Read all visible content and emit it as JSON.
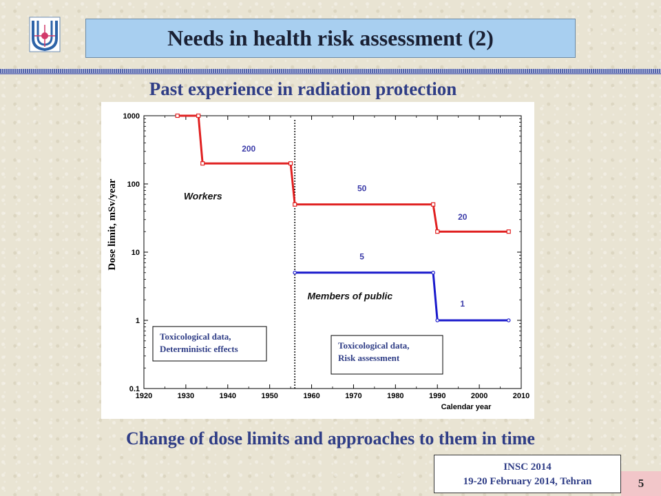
{
  "slide": {
    "title": "Needs in health risk assessment (2)",
    "subtitle": "Past experience in radiation protection",
    "caption": "Change of dose limits and approaches  to them  in time",
    "footer_line1": "INSC 2014",
    "footer_line2": "19-20 February 2014, Tehran",
    "page_number": "5"
  },
  "chart_data": {
    "type": "line",
    "xlabel": "Calendar year",
    "ylabel": "Dose limit, mSv/year",
    "xlim": [
      1920,
      2010
    ],
    "ylim": [
      0.1,
      1000
    ],
    "yscale": "log",
    "x_ticks": [
      "1920",
      "1930",
      "1940",
      "1950",
      "1960",
      "1970",
      "1980",
      "1990",
      "2000",
      "2010"
    ],
    "y_ticks": [
      "0.1",
      "1",
      "10",
      "100",
      "1000"
    ],
    "vertical_line_x": 1956,
    "series": [
      {
        "name": "Workers",
        "color": "#e02020",
        "points": [
          [
            1928,
            1000
          ],
          [
            1933,
            1000
          ],
          [
            1934,
            200
          ],
          [
            1955,
            200
          ],
          [
            1956,
            50
          ],
          [
            1989,
            50
          ],
          [
            1990,
            20
          ],
          [
            2007,
            20
          ]
        ]
      },
      {
        "name": "Members of public",
        "color": "#1a1acc",
        "points": [
          [
            1956,
            5
          ],
          [
            1989,
            5
          ],
          [
            1990,
            1
          ],
          [
            2007,
            1
          ]
        ]
      }
    ],
    "value_labels": [
      {
        "text": "200",
        "x": 1945,
        "y": 300,
        "color": "#3a3aa8"
      },
      {
        "text": "50",
        "x": 1972,
        "y": 78,
        "color": "#3a3aa8"
      },
      {
        "text": "20",
        "x": 1996,
        "y": 30,
        "color": "#3a3aa8"
      },
      {
        "text": "5",
        "x": 1972,
        "y": 7.8,
        "color": "#3a3aa8"
      },
      {
        "text": "1",
        "x": 1996,
        "y": 1.6,
        "color": "#3a3aa8"
      }
    ],
    "annotation_boxes": [
      {
        "lines": [
          "Toxicological data,",
          "Deterministic effects"
        ]
      },
      {
        "lines": [
          "Toxicological data,",
          "Risk assessment"
        ]
      }
    ]
  }
}
